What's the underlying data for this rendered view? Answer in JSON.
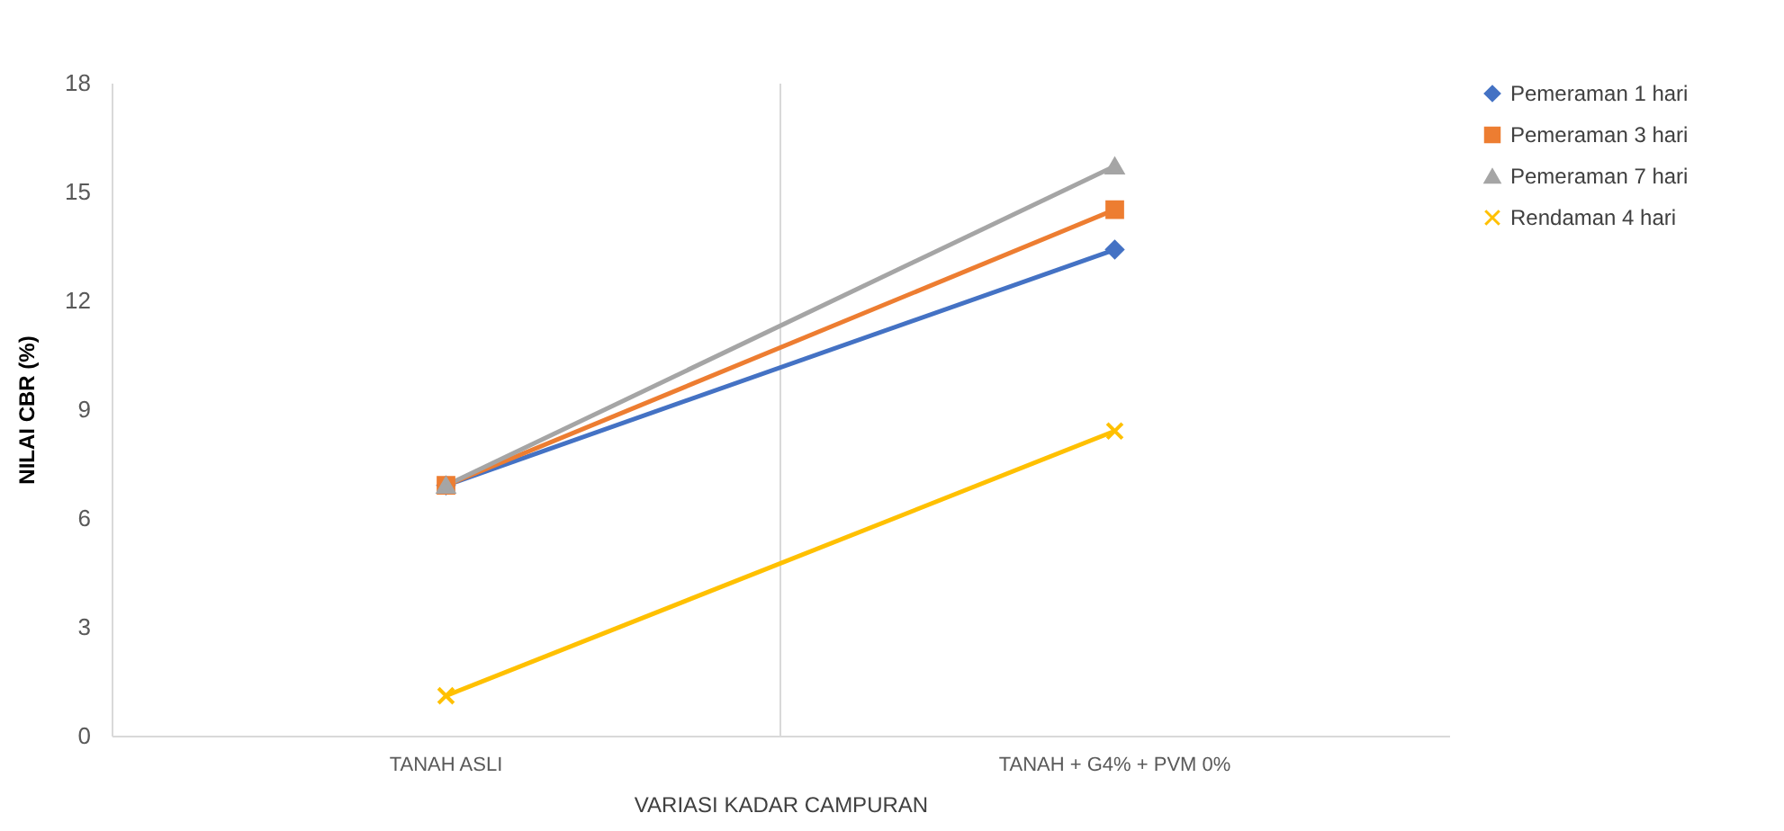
{
  "chart_data": {
    "type": "line",
    "xlabel": "VARIASI KADAR CAMPURAN",
    "ylabel": "NILAI CBR (%)",
    "categories": [
      "TANAH ASLI",
      "TANAH + G4% + PVM 0%"
    ],
    "ylim": [
      0,
      18
    ],
    "yticks": [
      0,
      3,
      6,
      9,
      12,
      15,
      18
    ],
    "grid": "x",
    "legend": "right",
    "series": [
      {
        "name": "Pemeraman 1 hari",
        "color": "#4472c4",
        "marker": "diamond",
        "values": [
          6.9,
          13.4
        ]
      },
      {
        "name": "Pemeraman 3 hari",
        "color": "#ed7d31",
        "marker": "square",
        "values": [
          6.9,
          14.5
        ]
      },
      {
        "name": "Pemeraman 7 hari",
        "color": "#a5a5a5",
        "marker": "triangle",
        "values": [
          6.9,
          15.7
        ]
      },
      {
        "name": "Rendaman 4 hari",
        "color": "#ffc000",
        "marker": "cross",
        "values": [
          1.1,
          8.4
        ]
      }
    ]
  }
}
